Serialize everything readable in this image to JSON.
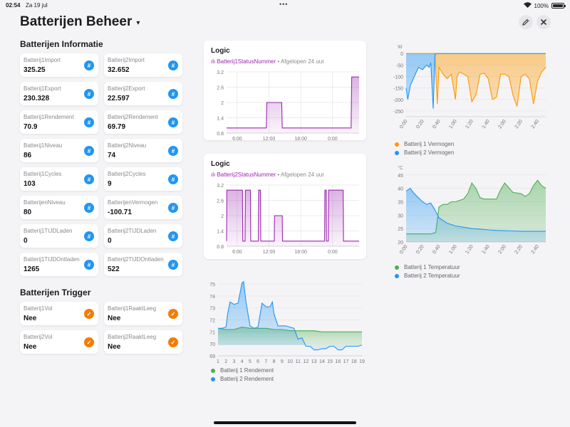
{
  "status": {
    "time": "02:54",
    "date": "Za 19 jul",
    "dots": "•••",
    "battery": "100%"
  },
  "header": {
    "title": "Batterijen Beheer",
    "caret": "▾",
    "edit_icon": "pencil-icon",
    "close_icon": "close-icon"
  },
  "info": {
    "title": "Batterijen Informatie",
    "items": [
      {
        "label": "Batterij1Import",
        "value": "325.25"
      },
      {
        "label": "Batterij2Import",
        "value": "32.652"
      },
      {
        "label": "Batterij1Export",
        "value": "230.328"
      },
      {
        "label": "Batterij2Export",
        "value": "22.597"
      },
      {
        "label": "Batterij1Rendement",
        "value": "70.9"
      },
      {
        "label": "Batterij2Rendement",
        "value": "69.79"
      },
      {
        "label": "Batterij1Niveau",
        "value": "86"
      },
      {
        "label": "Batterij2Niveau",
        "value": "74"
      },
      {
        "label": "Batterij1Cycles",
        "value": "103"
      },
      {
        "label": "Batterij2Cycles",
        "value": "9"
      },
      {
        "label": "BatterijenNiveau",
        "value": "80"
      },
      {
        "label": "BatterijenVermogen",
        "value": "-100.71"
      },
      {
        "label": "Batterij1TIJDLaden",
        "value": "0"
      },
      {
        "label": "Batterij2TIJDLaden",
        "value": "0"
      },
      {
        "label": "Batterij1TIJDOntladen",
        "value": "1265"
      },
      {
        "label": "Batterij2TIJDOntladen",
        "value": "522"
      }
    ],
    "icon_glyph": "#"
  },
  "trigger": {
    "title": "Batterijen Trigger",
    "items": [
      {
        "label": "Batterij1Vol",
        "value": "Nee"
      },
      {
        "label": "Batterij1RaaktLeeg",
        "value": "Nee"
      },
      {
        "label": "Batterij2Vol",
        "value": "Nee"
      },
      {
        "label": "Batterij2RaaktLeeg",
        "value": "Nee"
      }
    ],
    "icon_glyph": "✓"
  },
  "colors": {
    "purple": "#9c27b0",
    "blue": "#2196f3",
    "orange": "#ff9800",
    "green": "#4caf50"
  },
  "chart_data": [
    {
      "type": "line",
      "title": "Logic",
      "entity": "Batterij1StatusNummer",
      "period": "• Afgelopen 24 uur",
      "yticks": [
        "3.2",
        "2.6",
        "2",
        "1.4",
        "0.8"
      ],
      "xticks": [
        "6:00",
        "12:00",
        "18:00",
        "0:00"
      ],
      "ylim": [
        0.8,
        3.2
      ],
      "x": [
        0,
        7.5,
        7.6,
        10.4,
        10.5,
        23.5,
        23.6,
        25
      ],
      "values": [
        1,
        1,
        2,
        2,
        1,
        1,
        3,
        3
      ]
    },
    {
      "type": "line",
      "title": "Logic",
      "entity": "Batterij2StatusNummer",
      "period": "• Afgelopen 24 uur",
      "yticks": [
        "3.2",
        "2.6",
        "2",
        "1.4",
        "0.8"
      ],
      "xticks": [
        "6:00",
        "12:00",
        "18:00",
        "0:00"
      ],
      "ylim": [
        0.8,
        3.2
      ],
      "x": [
        0,
        0.05,
        3,
        3.05,
        3.5,
        3.55,
        4.5,
        4.55,
        6,
        6.05,
        6.4,
        6.45,
        9,
        9.05,
        10.5,
        10.55,
        14,
        14.05,
        17,
        17.05,
        18.5,
        18.55,
        18.8,
        18.85,
        19.2,
        19.25,
        19.5,
        19.55,
        22,
        22.05,
        25
      ],
      "values": [
        1,
        3,
        3,
        1,
        1,
        3,
        3,
        1,
        1,
        3,
        3,
        1,
        1,
        2,
        2,
        1,
        1,
        1,
        1,
        1,
        1,
        3,
        3,
        1,
        1,
        3,
        3,
        3,
        3,
        1,
        1
      ]
    },
    {
      "type": "area",
      "xticks": [
        "1",
        "2",
        "3",
        "4",
        "5",
        "6",
        "7",
        "8",
        "9",
        "10",
        "11",
        "12",
        "13",
        "14",
        "15",
        "16",
        "17",
        "18",
        "19"
      ],
      "yticks": [
        "75",
        "74",
        "73",
        "72",
        "71",
        "70",
        "69"
      ],
      "ylim": [
        69,
        75.3
      ],
      "series": [
        {
          "name": "Batterij 1 Rendement",
          "x": [
            1,
            2,
            3,
            4,
            5,
            6,
            7,
            8,
            9,
            10,
            11,
            12,
            13,
            14,
            15,
            16,
            17,
            18,
            19
          ],
          "values": [
            71.3,
            71.2,
            71.2,
            71.4,
            71.3,
            71.3,
            71.3,
            71.2,
            71.2,
            71.1,
            71.1,
            71.1,
            71.1,
            71.0,
            71.0,
            71.0,
            71.0,
            71.0,
            71.0
          ]
        },
        {
          "name": "Batterij 2 Rendement",
          "x": [
            1,
            1.5,
            2,
            2.2,
            2.5,
            3,
            3.5,
            4,
            4.2,
            4.5,
            5,
            5.5,
            6,
            6.5,
            7,
            7.5,
            7.8,
            8,
            8.5,
            9,
            9.5,
            10,
            10.5,
            11,
            11.5,
            12,
            12.5,
            13,
            13.5,
            14,
            14.5,
            15,
            15.5,
            16,
            16.5,
            17,
            17.5,
            18,
            18.5,
            19
          ],
          "values": [
            71.3,
            71.3,
            71.4,
            72.5,
            73.5,
            73.3,
            73.4,
            75.1,
            75.2,
            73.5,
            71.5,
            71.3,
            71.4,
            73.4,
            73.1,
            73.1,
            73.5,
            72.5,
            71.5,
            71.5,
            71.5,
            71.4,
            71.3,
            70.4,
            70.5,
            69.8,
            69.8,
            69.5,
            69.5,
            69.6,
            69.6,
            69.8,
            69.8,
            69.5,
            69.5,
            69.8,
            69.8,
            69.8,
            69.8,
            69.9
          ]
        }
      ]
    },
    {
      "type": "area",
      "unit": "W",
      "yticks": [
        "0",
        "-50",
        "-100",
        "-150",
        "-200",
        "-250"
      ],
      "xticks": [
        "0:00",
        "0:20",
        "0:40",
        "1:00",
        "1:20",
        "1:40",
        "2:00",
        "2:20",
        "2:40"
      ],
      "ylim": [
        -275,
        10
      ],
      "series": [
        {
          "name": "Batterij 1 Vermogen",
          "x": [
            0,
            35,
            36,
            38,
            40,
            45,
            50,
            55,
            60,
            62,
            65,
            70,
            75,
            80,
            85,
            90,
            95,
            100,
            105,
            110,
            115,
            120,
            125,
            130,
            135,
            140,
            145,
            150,
            155,
            160,
            165,
            170
          ],
          "values": [
            0,
            0,
            -80,
            -220,
            -60,
            -90,
            -110,
            -90,
            -200,
            -100,
            -80,
            -90,
            -100,
            -210,
            -180,
            -90,
            -85,
            -110,
            -200,
            -190,
            -90,
            -90,
            -100,
            -180,
            -230,
            -100,
            -90,
            -110,
            -220,
            -120,
            -80,
            -60
          ]
        },
        {
          "name": "Batterij 2 Vermogen",
          "x": [
            0,
            2,
            5,
            10,
            15,
            20,
            25,
            28,
            30,
            33,
            35,
            36,
            170
          ],
          "values": [
            -150,
            -200,
            -140,
            -100,
            -60,
            -70,
            -50,
            -60,
            -40,
            -240,
            -10,
            0,
            0
          ]
        }
      ]
    },
    {
      "type": "area",
      "unit": "°C",
      "yticks": [
        "45",
        "40",
        "35",
        "30",
        "25",
        "20"
      ],
      "xticks": [
        "0:00",
        "0:20",
        "0:40",
        "1:00",
        "1:20",
        "1:40",
        "2:00",
        "2:20",
        "2:40"
      ],
      "ylim": [
        20,
        46
      ],
      "series": [
        {
          "name": "Batterij 1 Temperatuur",
          "x": [
            0,
            20,
            30,
            36,
            40,
            45,
            50,
            55,
            60,
            70,
            75,
            80,
            85,
            90,
            95,
            100,
            105,
            110,
            115,
            120,
            130,
            140,
            145,
            150,
            155,
            160,
            165,
            170
          ],
          "values": [
            23,
            23,
            23,
            23.5,
            33,
            34,
            34,
            35,
            35,
            36,
            38,
            42,
            40,
            36.5,
            36,
            36,
            36,
            36,
            39.5,
            42,
            38.5,
            38,
            37,
            38,
            41,
            43,
            41,
            40
          ]
        },
        {
          "name": "Batterij 2 Temperatuur",
          "x": [
            0,
            5,
            10,
            20,
            25,
            30,
            35,
            40,
            45,
            50,
            60,
            70,
            80,
            90,
            100,
            110,
            120,
            130,
            140,
            150,
            170
          ],
          "values": [
            39,
            40,
            38,
            35,
            34,
            34.5,
            32,
            29,
            28,
            27,
            26,
            25.5,
            25,
            24.8,
            24.5,
            24.3,
            24.2,
            24.1,
            24,
            24,
            24
          ]
        }
      ]
    }
  ]
}
